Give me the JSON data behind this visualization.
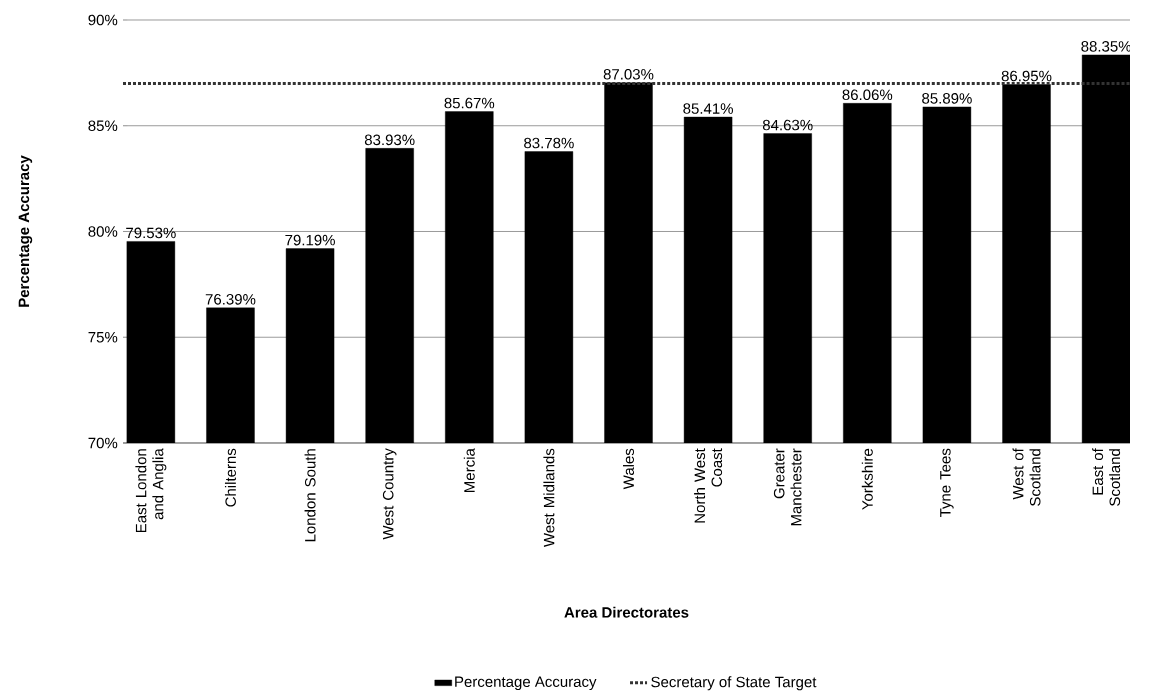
{
  "chart_data": {
    "type": "bar",
    "xlabel": "Area Directorates",
    "ylabel": "Percentage Accuracy",
    "categories": [
      "East London and Anglia",
      "Chilterns",
      "London South",
      "West Country",
      "Mercia",
      "West Midlands",
      "Wales",
      "North West Coast",
      "Greater Manchester",
      "Yorkshire",
      "Tyne Tees",
      "West of Scotland",
      "East of Scotland"
    ],
    "series": [
      {
        "name": "Percentage Accuracy",
        "color": "#000000",
        "values": [
          79.53,
          76.39,
          79.19,
          83.93,
          85.67,
          83.78,
          87.03,
          85.41,
          84.63,
          86.06,
          85.89,
          86.95,
          88.35
        ],
        "value_labels": [
          "79.53%",
          "76.39%",
          "79.19%",
          "83.93%",
          "85.67%",
          "83.78%",
          "87.03%",
          "85.41%",
          "84.63%",
          "86.06%",
          "85.89%",
          "86.95%",
          "88.35%"
        ]
      }
    ],
    "ylim": [
      70,
      90
    ],
    "yticks": [
      {
        "value": 70,
        "label": "70%"
      },
      {
        "value": 75,
        "label": "75%"
      },
      {
        "value": 80,
        "label": "80%"
      },
      {
        "value": 85,
        "label": "85%"
      },
      {
        "value": 90,
        "label": "90%"
      }
    ],
    "grid": "y",
    "legend": "bottom",
    "ref_lines": [
      {
        "axis": "y",
        "value": 87,
        "label": "Secretary of State Target",
        "color": "#333333",
        "line_style": "dotted"
      }
    ]
  }
}
